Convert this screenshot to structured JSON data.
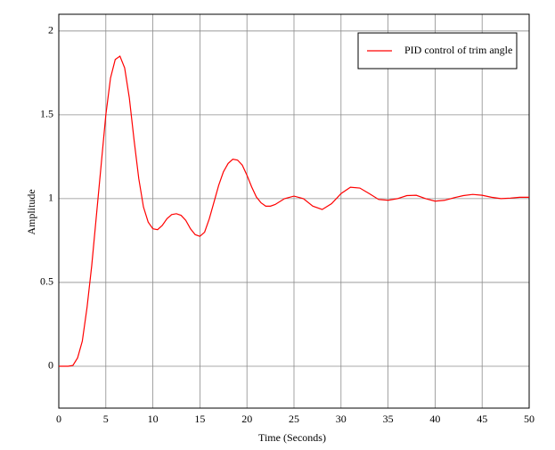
{
  "chart_data": {
    "type": "line",
    "x_label": "Time (Seconds)",
    "y_label": "Amplitude",
    "x": [
      0,
      0.5,
      1,
      1.5,
      2,
      2.5,
      3,
      3.5,
      4,
      4.5,
      5,
      5.5,
      6,
      6.5,
      7,
      7.5,
      8,
      8.5,
      9,
      9.5,
      10,
      10.5,
      11,
      11.5,
      12,
      12.5,
      13,
      13.5,
      14,
      14.5,
      15,
      15.5,
      16,
      16.5,
      17,
      17.5,
      18,
      18.5,
      19,
      19.5,
      20,
      20.5,
      21,
      21.5,
      22,
      22.5,
      23,
      24,
      25,
      26,
      27,
      28,
      29,
      30,
      31,
      32,
      33,
      34,
      35,
      36,
      37,
      38,
      39,
      40,
      41,
      42,
      43,
      44,
      45,
      46,
      47,
      48,
      49,
      50
    ],
    "series": [
      {
        "name": "PID control of trim angle",
        "color": "#ff0000",
        "values": [
          0,
          0,
          0,
          0.005,
          0.05,
          0.15,
          0.35,
          0.6,
          0.9,
          1.2,
          1.5,
          1.72,
          1.83,
          1.85,
          1.78,
          1.6,
          1.35,
          1.12,
          0.95,
          0.86,
          0.82,
          0.815,
          0.84,
          0.88,
          0.905,
          0.91,
          0.9,
          0.87,
          0.82,
          0.785,
          0.775,
          0.8,
          0.88,
          0.98,
          1.08,
          1.16,
          1.21,
          1.235,
          1.23,
          1.2,
          1.14,
          1.07,
          1.01,
          0.975,
          0.955,
          0.955,
          0.965,
          1.0,
          1.015,
          1.0,
          0.955,
          0.935,
          0.97,
          1.03,
          1.068,
          1.063,
          1.03,
          0.995,
          0.99,
          1.0,
          1.018,
          1.02,
          1.0,
          0.985,
          0.99,
          1.005,
          1.018,
          1.025,
          1.02,
          1.008,
          1.0,
          1.003,
          1.008,
          1.008
        ]
      }
    ],
    "xlim": [
      0,
      50
    ],
    "xticks": [
      0,
      5,
      10,
      15,
      20,
      25,
      30,
      35,
      40,
      45,
      50
    ],
    "ylim": [
      -0.25,
      2.1
    ],
    "yticks": [
      0,
      0.5,
      1,
      1.5,
      2
    ],
    "grid": true,
    "legend": "upper-right"
  }
}
